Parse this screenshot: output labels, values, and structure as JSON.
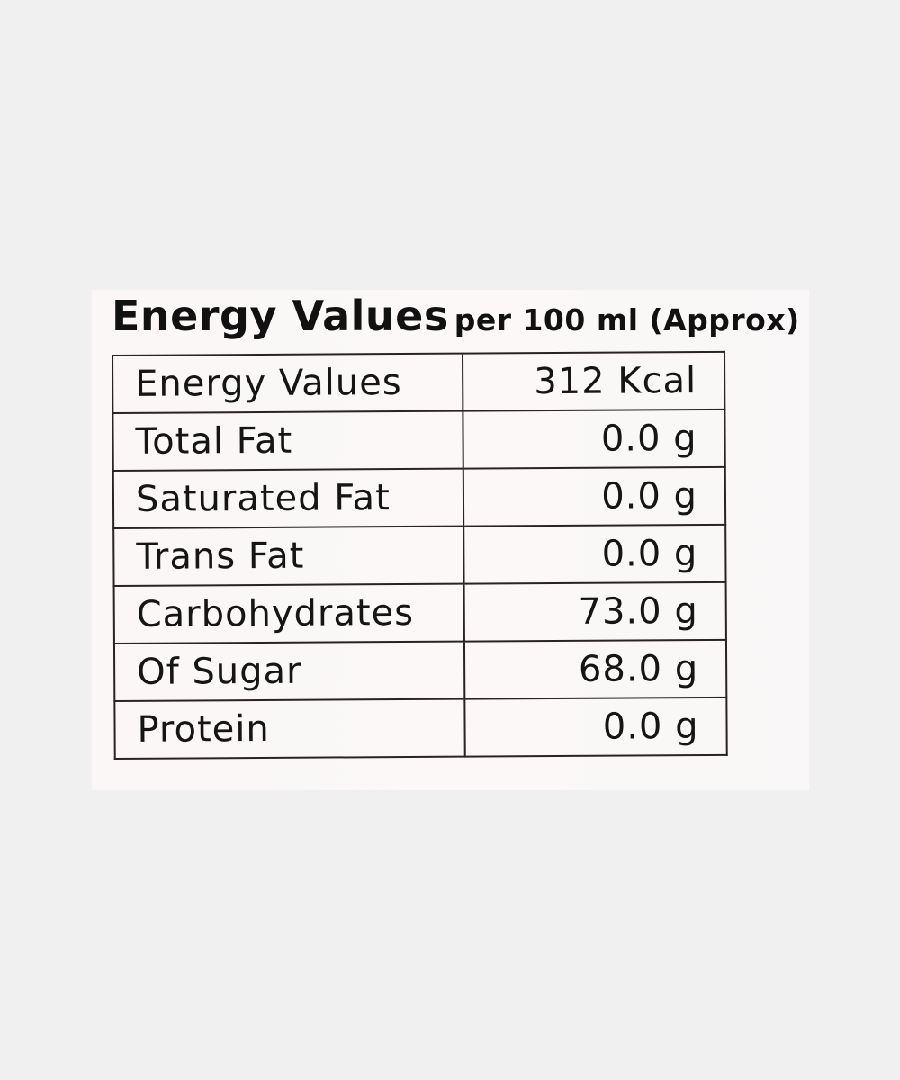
{
  "label": {
    "heading_main": "Energy Values",
    "heading_sub": "per 100 ml (Approx)",
    "rows": [
      {
        "name": "Energy Values",
        "value": "312 Kcal"
      },
      {
        "name": "Total Fat",
        "value": "0.0 g"
      },
      {
        "name": "Saturated Fat",
        "value": "0.0 g"
      },
      {
        "name": "Trans Fat",
        "value": "0.0 g"
      },
      {
        "name": "Carbohydrates",
        "value": "73.0 g"
      },
      {
        "name": "Of Sugar",
        "value": "68.0 g"
      },
      {
        "name": "Protein",
        "value": "0.0 g"
      }
    ]
  }
}
